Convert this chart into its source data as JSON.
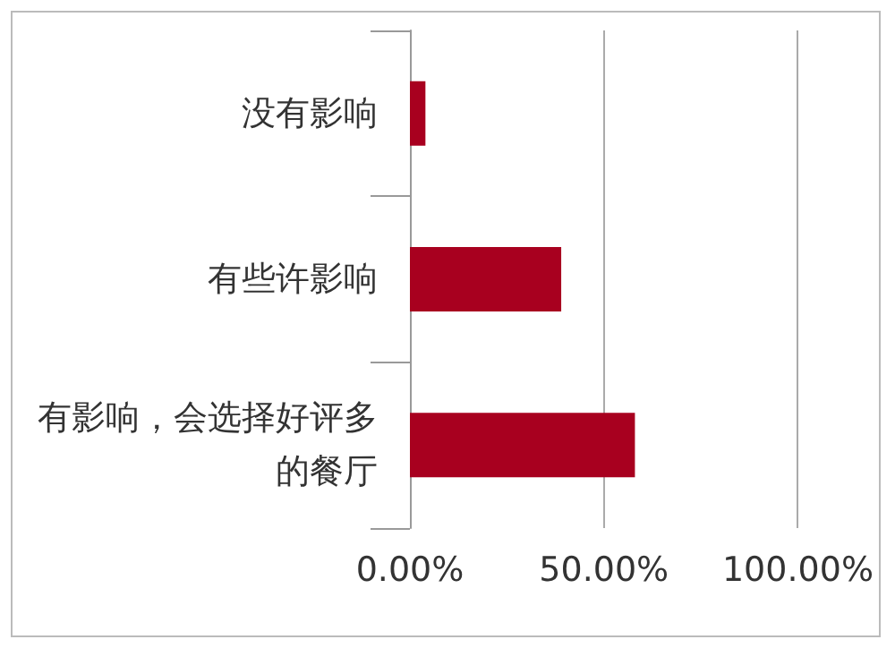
{
  "chart_data": {
    "type": "bar",
    "orientation": "horizontal",
    "categories": [
      "没有影响",
      "有些许影响",
      "有影响，会选择好评多的餐厅"
    ],
    "values": [
      4,
      39,
      58
    ],
    "color": "#a8001f",
    "xlim": [
      0,
      100
    ],
    "xticks": [
      {
        "value": 0,
        "label": "0.00%"
      },
      {
        "value": 50,
        "label": "50.00%"
      },
      {
        "value": 100,
        "label": "100.00%"
      }
    ],
    "grid": "x"
  }
}
